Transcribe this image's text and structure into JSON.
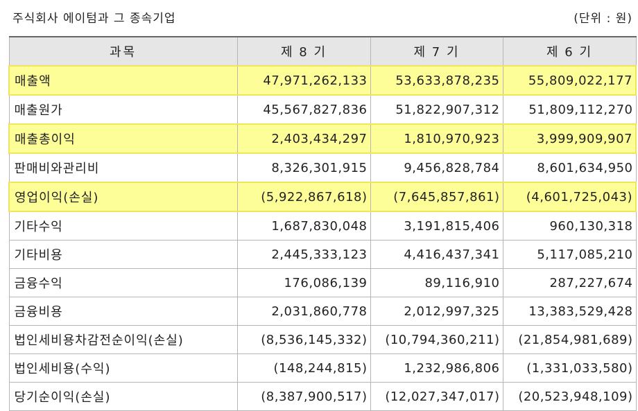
{
  "header": {
    "title": "주식회사 에이텀과 그 종속기업",
    "unit": "(단위 : 원)"
  },
  "table": {
    "columns": [
      "과목",
      "제 8 기",
      "제 7 기",
      "제 6 기"
    ],
    "rows": [
      {
        "label": "매출액",
        "values": [
          "47,971,262,133",
          "53,633,878,235",
          "55,809,022,177"
        ],
        "highlight": true
      },
      {
        "label": "매출원가",
        "values": [
          "45,567,827,836",
          "51,822,907,312",
          "51,809,112,270"
        ],
        "highlight": false
      },
      {
        "label": "매출총이익",
        "values": [
          "2,403,434,297",
          "1,810,970,923",
          "3,999,909,907"
        ],
        "highlight": true
      },
      {
        "label": "판매비와관리비",
        "values": [
          "8,326,301,915",
          "9,456,828,784",
          "8,601,634,950"
        ],
        "highlight": false
      },
      {
        "label": "영업이익(손실)",
        "values": [
          "(5,922,867,618)",
          "(7,645,857,861)",
          "(4,601,725,043)"
        ],
        "highlight": true
      },
      {
        "label": "기타수익",
        "values": [
          "1,687,830,048",
          "3,191,815,406",
          "960,130,318"
        ],
        "highlight": false
      },
      {
        "label": "기타비용",
        "values": [
          "2,445,333,123",
          "4,416,437,341",
          "5,117,085,210"
        ],
        "highlight": false
      },
      {
        "label": "금융수익",
        "values": [
          "176,086,139",
          "89,116,910",
          "287,227,674"
        ],
        "highlight": false
      },
      {
        "label": "금융비용",
        "values": [
          "2,031,860,778",
          "2,012,997,325",
          "13,383,529,428"
        ],
        "highlight": false
      },
      {
        "label": "법인세비용차감전순이익(손실)",
        "values": [
          "(8,536,145,332)",
          "(10,794,360,211)",
          "(21,854,981,689)"
        ],
        "highlight": false
      },
      {
        "label": "법인세비용(수익)",
        "values": [
          "(148,244,815)",
          "1,232,986,806",
          "(1,331,033,580)"
        ],
        "highlight": false
      },
      {
        "label": "당기순이익(손실)",
        "values": [
          "(8,387,900,517)",
          "(12,027,347,017)",
          "(20,523,948,109)"
        ],
        "highlight": false
      }
    ]
  },
  "colors": {
    "highlight_fill": "#fefe99",
    "highlight_border": "#f2e35a",
    "header_fill": "#e6e6e6"
  }
}
